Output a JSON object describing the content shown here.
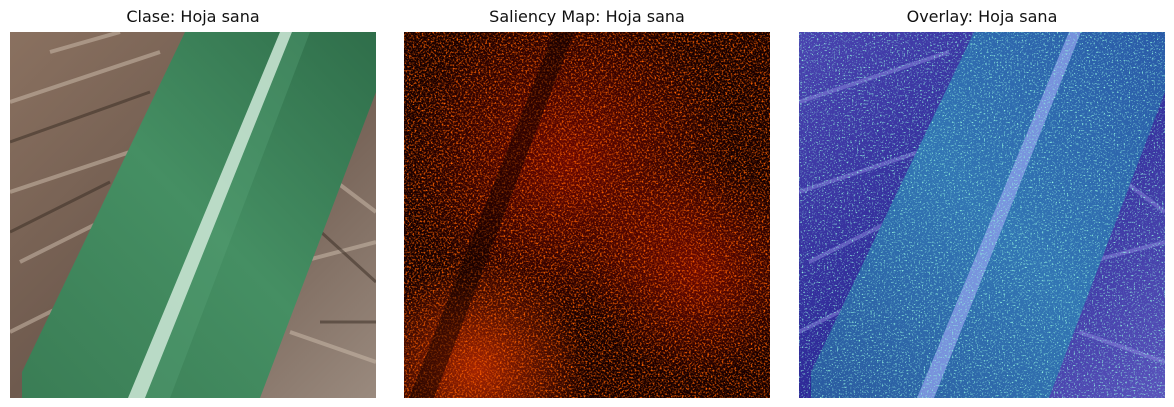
{
  "panels": [
    {
      "title": "Clase: Hoja sana",
      "image": "leaf-photo"
    },
    {
      "title": "Saliency Map: Hoja sana",
      "image": "saliency-heatmap"
    },
    {
      "title": "Overlay: Hoja sana",
      "image": "saliency-overlay"
    }
  ],
  "colors": {
    "background": "#ffffff",
    "leaf_green": "#3f8a5e",
    "leaf_midrib": "#cfe9d8",
    "saliency_dark": "#140000",
    "saliency_hot": "#ff2a00",
    "overlay_blue": "#2a2fa8",
    "overlay_highlight": "#44e6c0"
  }
}
